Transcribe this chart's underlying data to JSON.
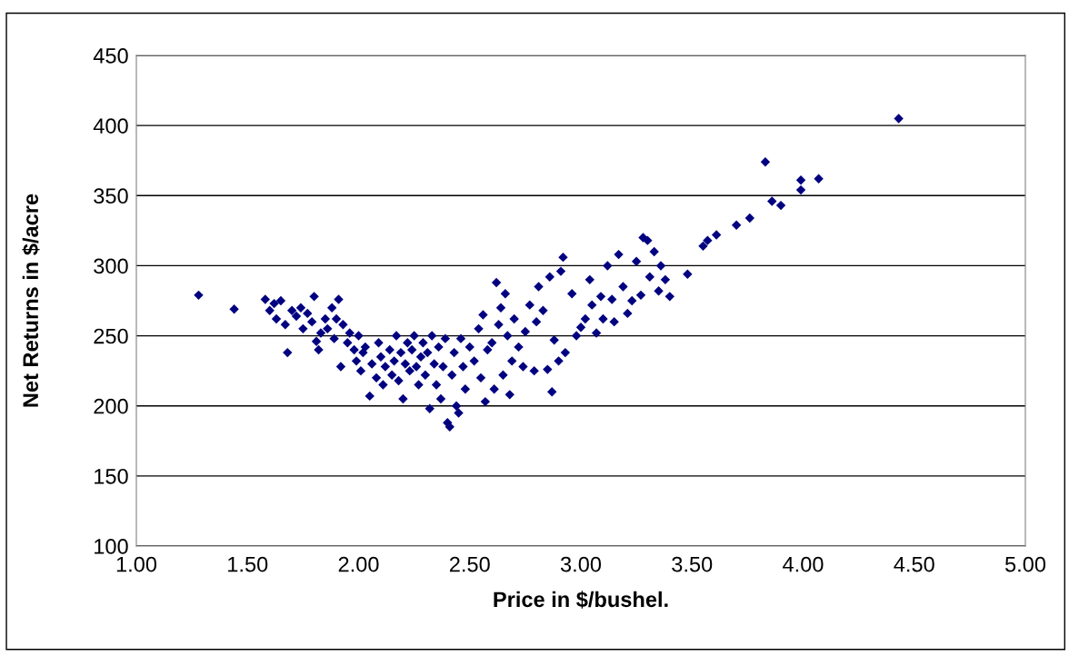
{
  "chart_data": {
    "type": "scatter",
    "xlabel": "Price in $/bushel.",
    "ylabel": "Net Returns in $/acre",
    "series": [
      {
        "color": "#000080",
        "x": [
          1.28,
          1.44,
          1.58,
          1.6,
          1.62,
          1.63,
          1.65,
          1.67,
          1.68,
          1.7,
          1.72,
          1.74,
          1.75,
          1.77,
          1.79,
          1.8,
          1.81,
          1.82,
          1.83,
          1.85,
          1.86,
          1.88,
          1.89,
          1.9,
          1.91,
          1.92,
          1.93,
          1.95,
          1.96,
          1.98,
          1.99,
          2.0,
          2.01,
          2.02,
          2.03,
          2.05,
          2.06,
          2.08,
          2.09,
          2.1,
          2.11,
          2.12,
          2.14,
          2.15,
          2.16,
          2.17,
          2.18,
          2.19,
          2.2,
          2.21,
          2.22,
          2.23,
          2.24,
          2.25,
          2.26,
          2.27,
          2.28,
          2.29,
          2.3,
          2.31,
          2.32,
          2.33,
          2.34,
          2.35,
          2.36,
          2.37,
          2.38,
          2.39,
          2.4,
          2.41,
          2.42,
          2.43,
          2.44,
          2.45,
          2.46,
          2.47,
          2.48,
          2.5,
          2.52,
          2.54,
          2.55,
          2.56,
          2.57,
          2.58,
          2.6,
          2.61,
          2.62,
          2.63,
          2.64,
          2.65,
          2.66,
          2.67,
          2.68,
          2.69,
          2.7,
          2.72,
          2.74,
          2.75,
          2.77,
          2.79,
          2.8,
          2.81,
          2.83,
          2.85,
          2.86,
          2.87,
          2.88,
          2.9,
          2.91,
          2.92,
          2.93,
          2.96,
          2.98,
          3.0,
          3.02,
          3.04,
          3.05,
          3.07,
          3.09,
          3.1,
          3.12,
          3.14,
          3.15,
          3.17,
          3.19,
          3.21,
          3.23,
          3.25,
          3.27,
          3.28,
          3.3,
          3.31,
          3.33,
          3.35,
          3.36,
          3.38,
          3.4,
          3.48,
          3.55,
          3.57,
          3.61,
          3.7,
          3.76,
          3.83,
          3.86,
          3.9,
          3.99,
          3.99,
          4.07,
          4.43
        ],
        "values": [
          279,
          269,
          276,
          268,
          273,
          262,
          275,
          258,
          238,
          268,
          264,
          270,
          255,
          266,
          260,
          278,
          246,
          240,
          252,
          262,
          255,
          270,
          248,
          262,
          276,
          228,
          258,
          245,
          252,
          240,
          232,
          250,
          225,
          238,
          242,
          207,
          230,
          220,
          245,
          235,
          215,
          228,
          240,
          222,
          232,
          250,
          218,
          238,
          205,
          230,
          245,
          225,
          240,
          250,
          228,
          215,
          235,
          245,
          222,
          238,
          198,
          250,
          230,
          215,
          242,
          205,
          228,
          248,
          188,
          185,
          222,
          238,
          200,
          195,
          248,
          228,
          212,
          242,
          232,
          255,
          220,
          265,
          203,
          240,
          245,
          212,
          288,
          258,
          270,
          222,
          280,
          250,
          208,
          232,
          262,
          242,
          228,
          253,
          272,
          225,
          260,
          285,
          268,
          226,
          292,
          210,
          247,
          232,
          296,
          306,
          238,
          280,
          250,
          256,
          262,
          290,
          272,
          252,
          278,
          262,
          300,
          276,
          260,
          308,
          285,
          266,
          275,
          303,
          279,
          320,
          318,
          292,
          310,
          282,
          300,
          290,
          278,
          294,
          314,
          318,
          322,
          329,
          334,
          374,
          346,
          343,
          354,
          361,
          362,
          405
        ]
      }
    ],
    "xlim": [
      1,
      5
    ],
    "xticks": [
      {
        "value": 1,
        "label": "1.00"
      },
      {
        "value": 1.5,
        "label": "1.50"
      },
      {
        "value": 2,
        "label": "2.00"
      },
      {
        "value": 2.5,
        "label": "2.50"
      },
      {
        "value": 3,
        "label": "3.00"
      },
      {
        "value": 3.5,
        "label": "3.50"
      },
      {
        "value": 4,
        "label": "4.00"
      },
      {
        "value": 4.5,
        "label": "4.50"
      },
      {
        "value": 5,
        "label": "5.00"
      }
    ],
    "ylim": [
      100,
      450
    ],
    "yticks": [
      100,
      150,
      200,
      250,
      300,
      350,
      400,
      450
    ],
    "grid": "y",
    "marker": "diamond",
    "legend": false
  }
}
